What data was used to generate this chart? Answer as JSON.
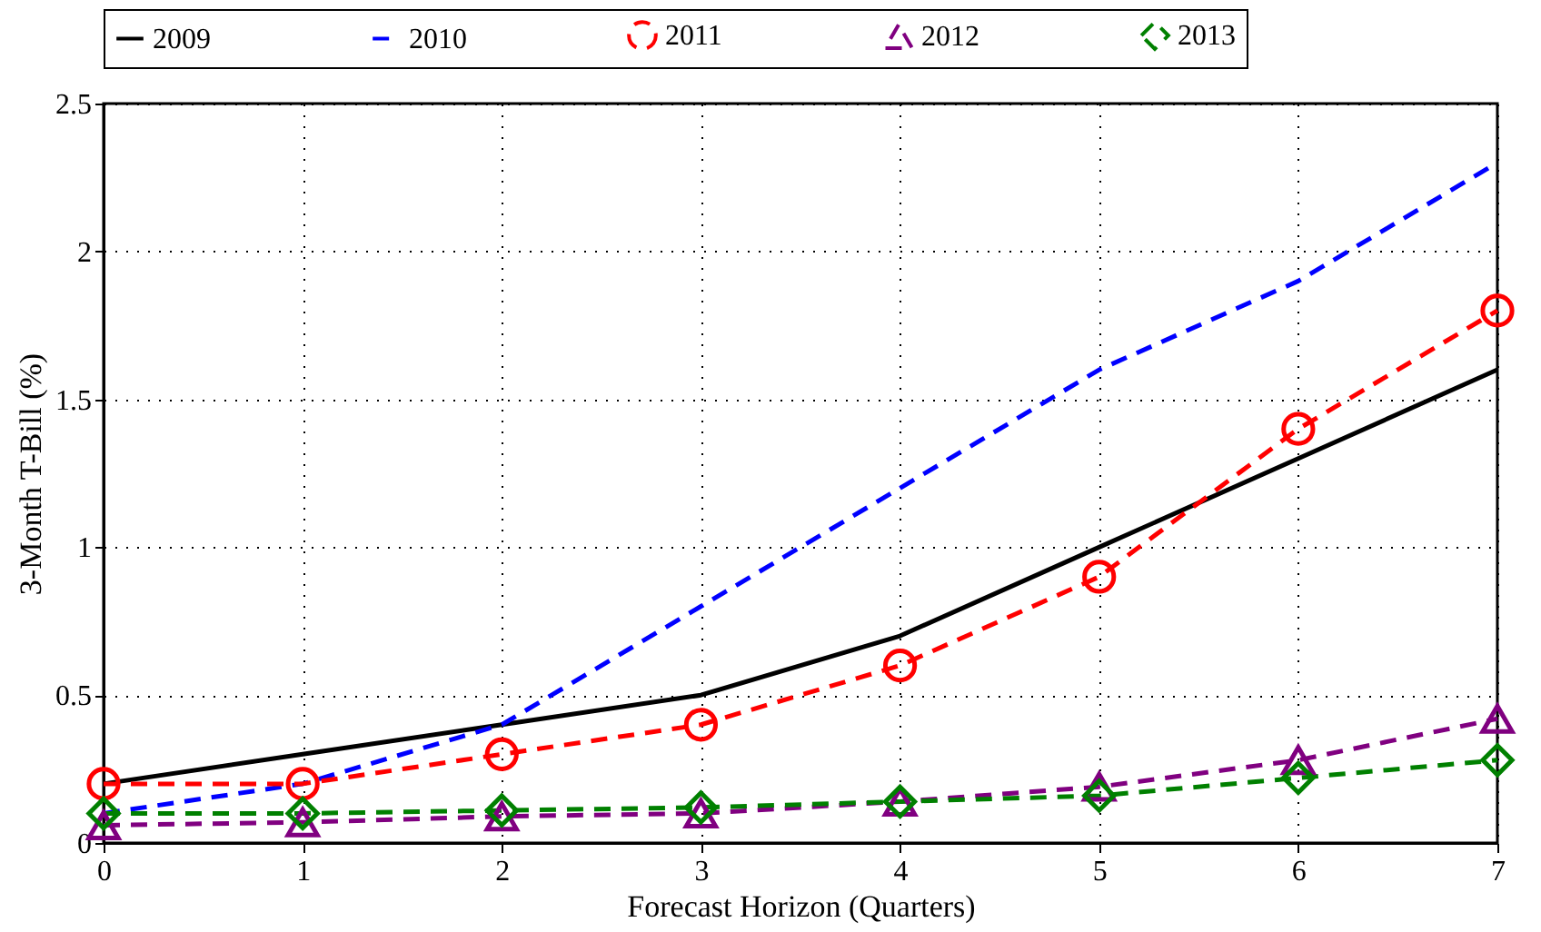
{
  "chart_data": {
    "type": "line",
    "xlabel": "Forecast Horizon (Quarters)",
    "ylabel": "3-Month T-Bill (%)",
    "x": [
      0,
      1,
      2,
      3,
      4,
      5,
      6,
      7
    ],
    "xlim": [
      0,
      7
    ],
    "xticks": [
      0,
      1,
      2,
      3,
      4,
      5,
      6,
      7
    ],
    "ylim": [
      0,
      2.5
    ],
    "yticks": [
      0,
      0.5,
      1,
      1.5,
      2,
      2.5
    ],
    "grid": true,
    "legend": "top",
    "series": [
      {
        "name": "2009",
        "color": "#000000",
        "marker": "none",
        "line_style": "solid",
        "values": [
          0.2,
          0.3,
          0.4,
          0.5,
          0.7,
          1.0,
          1.3,
          1.6
        ]
      },
      {
        "name": "2010",
        "color": "#0000ff",
        "marker": "none",
        "line_style": "dashed",
        "values": [
          0.1,
          0.2,
          0.4,
          0.8,
          1.2,
          1.6,
          1.9,
          2.3
        ]
      },
      {
        "name": "2011",
        "color": "#ff0000",
        "marker": "circle",
        "line_style": "dashed",
        "values": [
          0.2,
          0.2,
          0.3,
          0.4,
          0.6,
          0.9,
          1.4,
          1.8
        ]
      },
      {
        "name": "2012",
        "color": "#800080",
        "marker": "triangle",
        "line_style": "dashed",
        "values": [
          0.06,
          0.07,
          0.09,
          0.1,
          0.14,
          0.19,
          0.28,
          0.42
        ]
      },
      {
        "name": "2013",
        "color": "#008000",
        "marker": "diamond",
        "line_style": "dashed",
        "values": [
          0.1,
          0.1,
          0.11,
          0.12,
          0.14,
          0.16,
          0.22,
          0.28
        ]
      }
    ]
  }
}
